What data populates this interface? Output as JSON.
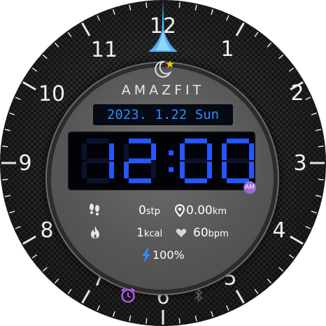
{
  "watch": {
    "brand": "AMAZFIT",
    "date": "2023. 1.22 Sun",
    "time": "12:00",
    "ampm": "AM",
    "dial_numbers": [
      "12",
      "1",
      "2",
      "3",
      "4",
      "5",
      "6",
      "7",
      "8",
      "9",
      "10",
      "11"
    ]
  },
  "stats": {
    "steps_value": "0",
    "steps_unit": "stp",
    "distance_value": "0.00",
    "distance_unit": "km",
    "calories_value": "1",
    "calories_unit": "kcal",
    "heart_value": "60",
    "heart_unit": "bpm",
    "battery": "100%"
  },
  "icons": {
    "brand": "moon-star-icon",
    "steps": "footsteps-icon",
    "distance": "location-pin-icon",
    "calories": "flame-icon",
    "heart": "heart-icon",
    "battery": "lightning-icon",
    "alarm": "alarm-clock-icon",
    "bluetooth": "bluetooth-icon"
  },
  "colors": {
    "accent": "#2f8bff",
    "second_hand": "#35c6ff",
    "alarm": "#b455e8",
    "ampm_badge": "#9b6bd9"
  }
}
